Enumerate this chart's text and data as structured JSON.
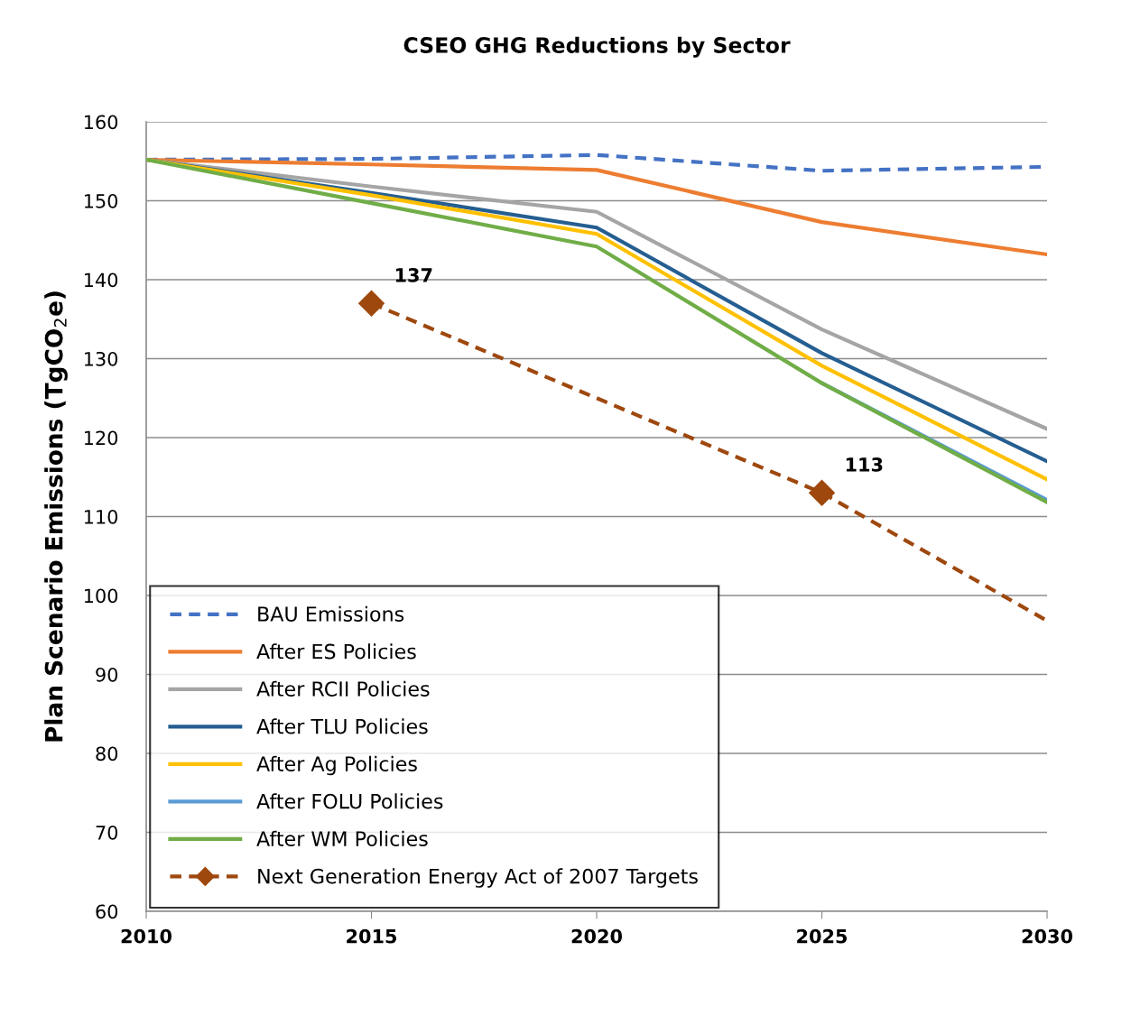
{
  "chart_data": {
    "type": "line",
    "title": "CSEO GHG Reductions by Sector",
    "ylabel": "Plan Scenario Emissions (TgCO$_{2}$e)",
    "x": [
      2010,
      2015,
      2020,
      2025,
      2030
    ],
    "xlim": [
      2010,
      2030
    ],
    "xticks": [
      2010,
      2015,
      2020,
      2025,
      2030
    ],
    "ylim": [
      60,
      160
    ],
    "yticks": [
      60,
      70,
      80,
      90,
      100,
      110,
      120,
      130,
      140,
      150,
      160
    ],
    "grid": "y",
    "legend": "bottom left",
    "series": [
      {
        "name": "BAU Emissions",
        "color": "#4472c4",
        "line_style": "dashed",
        "values": [
          155.2,
          155.3,
          155.8,
          153.8,
          154.3
        ]
      },
      {
        "name": "After ES Policies",
        "color": "#ed7d31",
        "values": [
          155.2,
          154.6,
          153.9,
          147.3,
          143.2
        ]
      },
      {
        "name": "After RCII Policies",
        "color": "#a5a5a5",
        "values": [
          155.2,
          151.8,
          148.6,
          133.7,
          121.1
        ]
      },
      {
        "name": "After TLU Policies",
        "color": "#255e91",
        "values": [
          155.2,
          151.0,
          146.6,
          130.7,
          117.0
        ]
      },
      {
        "name": "After Ag Policies",
        "color": "#ffc000",
        "values": [
          155.2,
          150.7,
          145.8,
          129.1,
          114.7
        ]
      },
      {
        "name": "After FOLU Policies",
        "color": "#5b9bd5",
        "values": [
          null,
          null,
          null,
          126.9,
          112.1
        ]
      },
      {
        "name": "After WM Policies",
        "color": "#70ad47",
        "values": [
          155.2,
          149.7,
          144.2,
          126.9,
          111.8
        ]
      },
      {
        "name": "Next Generation Energy Act of 2007 Targets",
        "color": "#9e480e",
        "line_style": "dashed",
        "marker": "diamond",
        "x": [
          2015,
          2025,
          2030
        ],
        "values": [
          137,
          113,
          96.8
        ],
        "value_labels": [
          "137",
          "113",
          null
        ]
      }
    ]
  }
}
